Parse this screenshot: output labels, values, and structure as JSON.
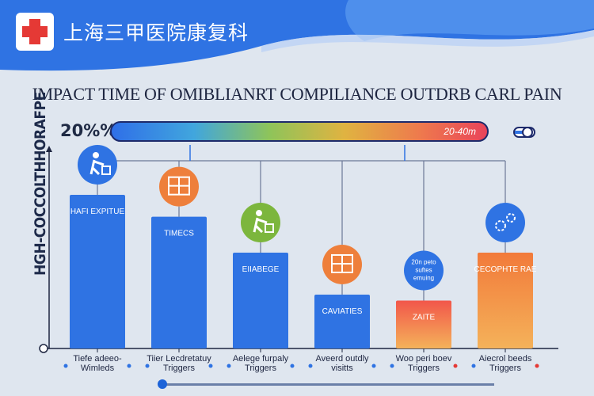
{
  "header": {
    "brand_name": "上海三甲医院康复科",
    "logo_icon": "red-cross-icon",
    "colors": {
      "primary": "#2f73e3",
      "accent": "#e53935"
    }
  },
  "progress": {
    "left_label": "20%%",
    "bar_label": "20-40m",
    "toggle_icon": "toggle-switch-icon"
  },
  "chart_data": {
    "type": "bar",
    "title": "IMPACT TIME OF OMIBLIANRT COMPILIANCE OUTDRB CARL PAIN",
    "ylabel": "HGH-COCCOLTHHORAFPE",
    "xlabel": "",
    "categories": [
      "Tiefe adeeo- Wimleds",
      "Tiier Lecdretatuy Triggers",
      "Aelege furpaly Triggers",
      "Aveerd outdly visitts",
      "Woo peri boev Triggers",
      "Aiecrol beeds Triggers"
    ],
    "bar_labels": [
      "HAFI EXPITUE",
      "TIMECS",
      "EIIABEGE",
      "CAVIATIES",
      "ZAITE",
      "CECOPHTE RAE"
    ],
    "icons": [
      "person-exercise-icon",
      "shelf-equipment-icon",
      "person-exercise-icon",
      "home-rehab-icon",
      "info-text-icon",
      "gears-icon"
    ],
    "icon_texts": [
      "",
      "",
      "",
      "",
      "20n peto suftes emuing",
      ""
    ],
    "values": [
      77,
      66,
      48,
      27,
      24,
      48
    ],
    "ylim": [
      0,
      100
    ],
    "bar_colors": [
      "#2f73e3",
      "#2f73e3",
      "#2f73e3",
      "#2f73e3",
      "#f2564a",
      "#f27a3a"
    ],
    "icon_colors": [
      "#2f73e3",
      "#ee7f3b",
      "#7cb63d",
      "#ee7f3b",
      "#2f73e3",
      "#2f73e3"
    ]
  }
}
